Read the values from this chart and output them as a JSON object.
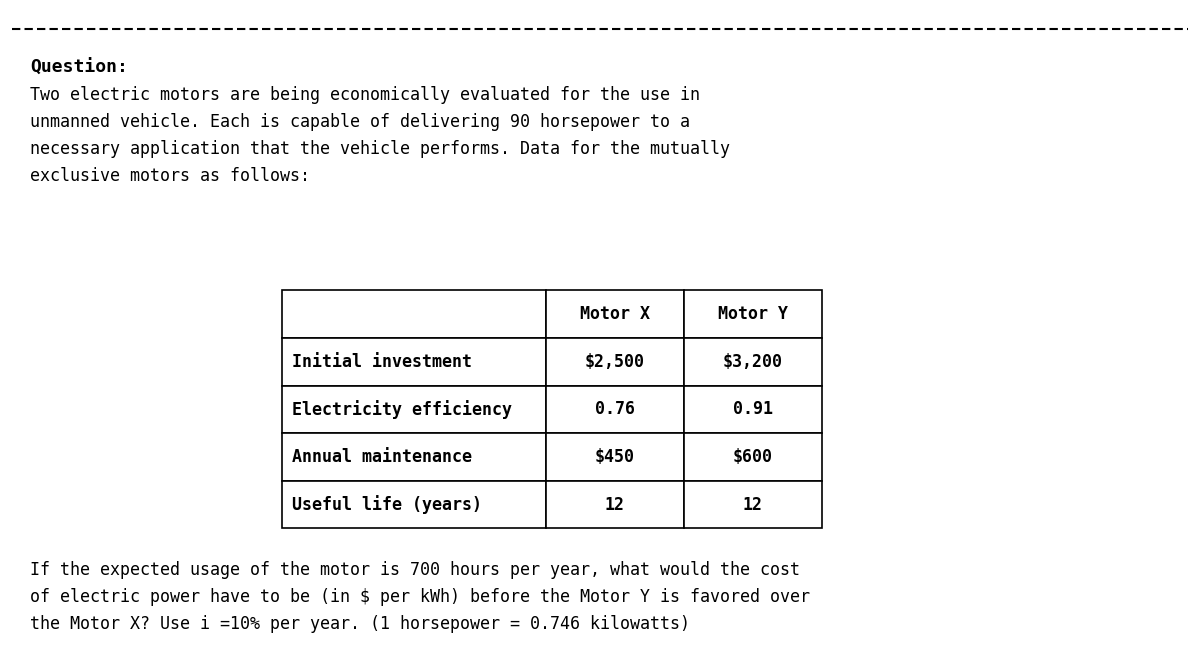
{
  "title": "Question:",
  "intro_text": "Two electric motors are being economically evaluated for the use in\nunmanned vehicle. Each is capable of delivering 90 horsepower to a\nnecessary application that the vehicle performs. Data for the mutually\nexclusive motors as follows:",
  "table_headers": [
    "",
    "Motor X",
    "Motor Y"
  ],
  "table_rows": [
    [
      "Initial investment",
      "$2,500",
      "$3,200"
    ],
    [
      "Electricity efficiency",
      "0.76",
      "0.91"
    ],
    [
      "Annual maintenance",
      "$450",
      "$600"
    ],
    [
      "Useful life (years)",
      "12",
      "12"
    ]
  ],
  "footer_text": "If the expected usage of the motor is 700 hours per year, what would the cost\nof electric power have to be (in $ per kWh) before the Motor Y is favored over\nthe Motor X? Use i =10% per year. (1 horsepower = 0.746 kilowatts)",
  "bg_color": "#ffffff",
  "text_color": "#000000",
  "font_size_title": 13,
  "font_size_body": 12,
  "font_size_table": 12
}
